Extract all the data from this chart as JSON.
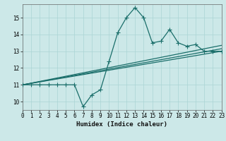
{
  "xlabel": "Humidex (Indice chaleur)",
  "ylabel": "",
  "bg_color": "#cce8e8",
  "line_color": "#1a6e6a",
  "x_data": [
    0,
    1,
    2,
    3,
    4,
    5,
    6,
    7,
    8,
    9,
    10,
    11,
    12,
    13,
    14,
    15,
    16,
    17,
    18,
    19,
    20,
    21,
    22,
    23
  ],
  "y_main": [
    11.0,
    11.0,
    11.0,
    11.0,
    11.0,
    11.0,
    11.0,
    9.7,
    10.4,
    10.7,
    12.4,
    14.1,
    15.0,
    15.6,
    15.0,
    13.5,
    13.6,
    14.3,
    13.5,
    13.3,
    13.4,
    13.0,
    13.0,
    13.0
  ],
  "reg_lines": [
    {
      "x": [
        0,
        23
      ],
      "y": [
        11.0,
        13.0
      ]
    },
    {
      "x": [
        0,
        23
      ],
      "y": [
        11.0,
        13.15
      ]
    },
    {
      "x": [
        0,
        23
      ],
      "y": [
        11.0,
        13.35
      ]
    }
  ],
  "xlim": [
    0,
    23
  ],
  "ylim": [
    9.5,
    15.8
  ],
  "yticks": [
    10,
    11,
    12,
    13,
    14,
    15
  ],
  "xticks": [
    0,
    1,
    2,
    3,
    4,
    5,
    6,
    7,
    8,
    9,
    10,
    11,
    12,
    13,
    14,
    15,
    16,
    17,
    18,
    19,
    20,
    21,
    22,
    23
  ],
  "grid_color": "#aad4d4",
  "label_fontsize": 6.5,
  "tick_fontsize": 5.5,
  "marker_size": 2.0,
  "line_width": 0.9
}
